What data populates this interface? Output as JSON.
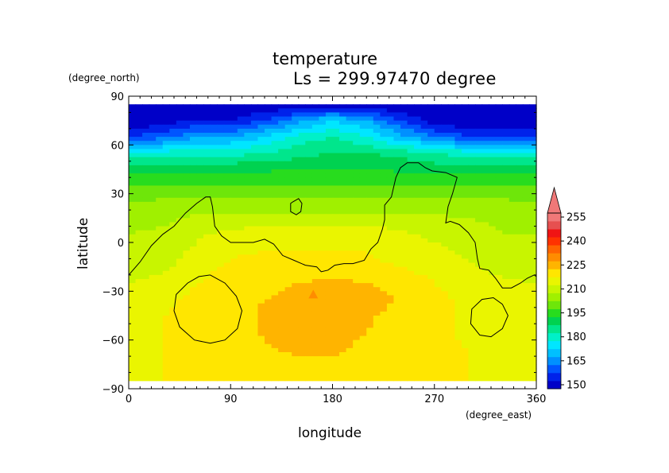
{
  "chart_data": {
    "type": "heatmap",
    "title": "temperature",
    "subtitle": "Ls = 299.97470 degree",
    "xlabel": "longitude",
    "ylabel": "latitude",
    "x_unit": "(degree_east)",
    "y_unit": "(degree_north)",
    "xlim": [
      0,
      360
    ],
    "ylim": [
      -90,
      90
    ],
    "x_ticks": [
      0,
      90,
      180,
      270,
      360
    ],
    "y_ticks": [
      -90,
      -60,
      -30,
      0,
      30,
      60,
      90
    ],
    "x_tick_labels": [
      "0",
      "90",
      "180",
      "270",
      "360"
    ],
    "y_tick_labels": [
      "−90",
      "−60",
      "−30",
      "0",
      "30",
      "60",
      "90"
    ],
    "levels": [
      150,
      155,
      160,
      165,
      170,
      175,
      180,
      185,
      190,
      195,
      200,
      205,
      210,
      215,
      220,
      225,
      230,
      235,
      240,
      245,
      250,
      255
    ],
    "level_labels": [
      "150",
      "165",
      "180",
      "195",
      "210",
      "225",
      "240",
      "255"
    ],
    "level_colors": [
      "#0000c8",
      "#0022ea",
      "#0055ff",
      "#0090ff",
      "#00c0ff",
      "#00e6ff",
      "#00f0c8",
      "#00e68c",
      "#00d250",
      "#28dc1e",
      "#6ee60a",
      "#a0f000",
      "#c8f500",
      "#eaf500",
      "#ffe600",
      "#ffb400",
      "#ff8c00",
      "#ff6400",
      "#ff3200",
      "#f01414",
      "#e65050",
      "#f07878"
    ],
    "grid": false,
    "legend": "colorbar-right",
    "lat_rows": [
      85,
      75,
      65,
      55,
      45,
      35,
      25,
      15,
      5,
      -5,
      -15,
      -25,
      -35,
      -45,
      -55,
      -65,
      -75,
      -85
    ],
    "lon_cols": [
      0,
      30,
      60,
      90,
      120,
      150,
      180,
      210,
      240,
      270,
      300,
      330,
      360
    ],
    "values": [
      [
        150,
        150,
        150,
        150,
        150,
        150,
        150,
        150,
        150,
        150,
        150,
        150,
        150
      ],
      [
        150,
        152,
        155,
        155,
        160,
        168,
        175,
        170,
        160,
        152,
        150,
        150,
        150
      ],
      [
        160,
        163,
        170,
        170,
        175,
        182,
        185,
        180,
        172,
        165,
        160,
        158,
        160
      ],
      [
        180,
        182,
        183,
        183,
        185,
        188,
        190,
        190,
        188,
        185,
        182,
        182,
        182
      ],
      [
        193,
        194,
        194,
        194,
        194,
        195,
        195,
        195,
        194,
        193,
        193,
        193,
        193
      ],
      [
        200,
        200,
        200,
        200,
        200,
        200,
        200,
        200,
        200,
        200,
        200,
        200,
        200
      ],
      [
        205,
        206,
        207,
        206,
        206,
        206,
        206,
        206,
        206,
        206,
        206,
        206,
        205
      ],
      [
        208,
        209,
        211,
        211,
        211,
        211,
        212,
        212,
        212,
        211,
        210,
        209,
        208
      ],
      [
        210,
        211,
        214,
        217,
        218,
        218,
        218,
        218,
        216,
        214,
        212,
        210,
        210
      ],
      [
        211,
        212,
        216,
        219,
        220,
        220,
        220,
        220,
        218,
        216,
        214,
        211,
        211
      ],
      [
        212,
        214,
        218,
        221,
        222,
        222,
        222,
        221,
        220,
        218,
        216,
        213,
        212
      ],
      [
        215,
        217,
        220,
        222,
        223,
        225,
        226,
        225,
        223,
        220,
        218,
        216,
        215
      ],
      [
        217,
        219,
        221,
        223,
        225,
        227,
        228,
        227,
        225,
        221,
        219,
        217,
        217
      ],
      [
        218,
        220,
        221,
        222,
        226,
        228,
        228,
        226,
        223,
        221,
        219,
        218,
        218
      ],
      [
        219,
        220,
        221,
        222,
        226,
        228,
        228,
        225,
        222,
        221,
        219,
        219,
        219
      ],
      [
        219,
        220,
        221,
        222,
        224,
        227,
        227,
        223,
        222,
        221,
        220,
        219,
        219
      ],
      [
        219,
        220,
        221,
        222,
        222,
        223,
        223,
        222,
        222,
        221,
        220,
        219,
        219
      ],
      [
        219,
        220,
        220,
        221,
        221,
        222,
        222,
        222,
        221,
        221,
        220,
        219,
        219
      ]
    ],
    "contour_line_coast": [
      [
        0,
        -20
      ],
      [
        10,
        -12
      ],
      [
        20,
        -2
      ],
      [
        30,
        5
      ],
      [
        40,
        10
      ],
      [
        50,
        18
      ],
      [
        60,
        24
      ],
      [
        68,
        28
      ],
      [
        72,
        28
      ],
      [
        74,
        22
      ],
      [
        76,
        10
      ],
      [
        82,
        4
      ],
      [
        90,
        0
      ],
      [
        100,
        0
      ],
      [
        110,
        0
      ],
      [
        120,
        2
      ],
      [
        128,
        -1
      ],
      [
        136,
        -8
      ],
      [
        146,
        -11
      ],
      [
        156,
        -14
      ],
      [
        166,
        -15
      ],
      [
        170,
        -18
      ],
      [
        176,
        -17
      ],
      [
        182,
        -14
      ],
      [
        190,
        -13
      ],
      [
        198,
        -13
      ],
      [
        208,
        -11
      ],
      [
        214,
        -4
      ],
      [
        220,
        0
      ],
      [
        224,
        8
      ],
      [
        226,
        14
      ],
      [
        226,
        23
      ],
      [
        232,
        28
      ],
      [
        234,
        34
      ],
      [
        236,
        40
      ],
      [
        240,
        46
      ],
      [
        246,
        49
      ],
      [
        256,
        49
      ],
      [
        262,
        46
      ],
      [
        268,
        44
      ],
      [
        280,
        43
      ],
      [
        290,
        40
      ],
      [
        286,
        30
      ],
      [
        282,
        22
      ],
      [
        280,
        12
      ],
      [
        284,
        13
      ],
      [
        292,
        11
      ],
      [
        300,
        6
      ],
      [
        306,
        0
      ],
      [
        308,
        -10
      ],
      [
        310,
        -16
      ],
      [
        318,
        -17
      ],
      [
        324,
        -22
      ],
      [
        330,
        -28
      ],
      [
        338,
        -28
      ],
      [
        346,
        -25
      ],
      [
        352,
        -22
      ],
      [
        358,
        -20
      ],
      [
        360,
        -21
      ]
    ],
    "contour_loop_north": [
      [
        145,
        25
      ],
      [
        150,
        27
      ],
      [
        153,
        24
      ],
      [
        152,
        19
      ],
      [
        148,
        17
      ],
      [
        143,
        19
      ],
      [
        143,
        24
      ],
      [
        145,
        25
      ]
    ],
    "contour_loop_southwest": [
      [
        72,
        -20
      ],
      [
        85,
        -25
      ],
      [
        95,
        -33
      ],
      [
        100,
        -42
      ],
      [
        96,
        -53
      ],
      [
        85,
        -60
      ],
      [
        72,
        -62
      ],
      [
        58,
        -60
      ],
      [
        45,
        -52
      ],
      [
        40,
        -42
      ],
      [
        42,
        -32
      ],
      [
        52,
        -25
      ],
      [
        62,
        -21
      ],
      [
        72,
        -20
      ]
    ],
    "contour_loop_southeast": [
      [
        330,
        -38
      ],
      [
        335,
        -45
      ],
      [
        330,
        -53
      ],
      [
        320,
        -58
      ],
      [
        310,
        -57
      ],
      [
        302,
        -50
      ],
      [
        303,
        -41
      ],
      [
        312,
        -35
      ],
      [
        322,
        -34
      ],
      [
        330,
        -38
      ]
    ],
    "peak_marker": [
      163,
      -32
    ]
  }
}
